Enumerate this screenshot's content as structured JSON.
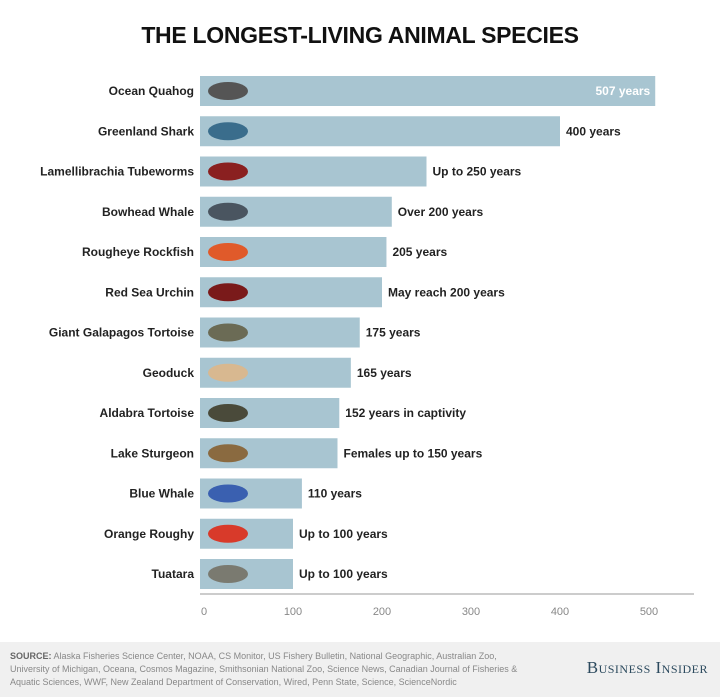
{
  "title": "THE LONGEST-LIVING ANIMAL SPECIES",
  "chart_data": {
    "type": "bar",
    "orientation": "horizontal",
    "title": "THE LONGEST-LIVING ANIMAL SPECIES",
    "categories": [
      "Ocean Quahog",
      "Greenland Shark",
      "Lamellibrachia Tubeworms",
      "Bowhead Whale",
      "Rougheye Rockfish",
      "Red Sea Urchin",
      "Giant Galapagos Tortoise",
      "Geoduck",
      "Aldabra Tortoise",
      "Lake Sturgeon",
      "Blue Whale",
      "Orange Roughy",
      "Tuatara"
    ],
    "values": [
      507,
      400,
      250,
      211,
      205,
      200,
      175,
      165,
      152,
      150,
      110,
      100,
      100
    ],
    "data_labels": [
      "507 years",
      "400 years",
      "Up to 250 years",
      "Over 200 years",
      "205 years",
      "May reach 200 years",
      "175 years",
      "165 years",
      "152 years in captivity",
      "Females up to 150 years",
      "110 years",
      "Up to 100 years",
      "Up to 100 years"
    ],
    "icons": [
      "clam-icon",
      "shark-icon",
      "tubeworm-icon",
      "whale-icon",
      "rockfish-icon",
      "urchin-icon",
      "tortoise-icon",
      "geoduck-icon",
      "tortoise-icon",
      "sturgeon-icon",
      "whale-icon",
      "fish-icon",
      "tuatara-icon"
    ],
    "icon_colors": [
      "#555555",
      "#3a6d8c",
      "#8a2020",
      "#4a5560",
      "#e05a2a",
      "#7a1a1a",
      "#6b6b55",
      "#d8b890",
      "#4a4a3a",
      "#8a6a40",
      "#3a60b0",
      "#d83a2a",
      "#7a7a70"
    ],
    "xticks": [
      0,
      100,
      200,
      300,
      400,
      500
    ],
    "xlim": [
      0,
      550
    ],
    "bar_color": "#a8c5d1",
    "grid": false
  },
  "footer": {
    "source_label": "SOURCE:",
    "source_text": "Alaska Fisheries Science Center, NOAA, CS Monitor, US Fishery Bulletin, National Geographic, Australian Zoo, University of Michigan, Oceana, Cosmos Magazine, Smithsonian National Zoo, Science News, Canadian Journal of Fisheries & Aquatic Sciences, WWF, New Zealand Department of Conservation, Wired, Penn State, Science, ScienceNordic",
    "brand": "Business Insider"
  }
}
